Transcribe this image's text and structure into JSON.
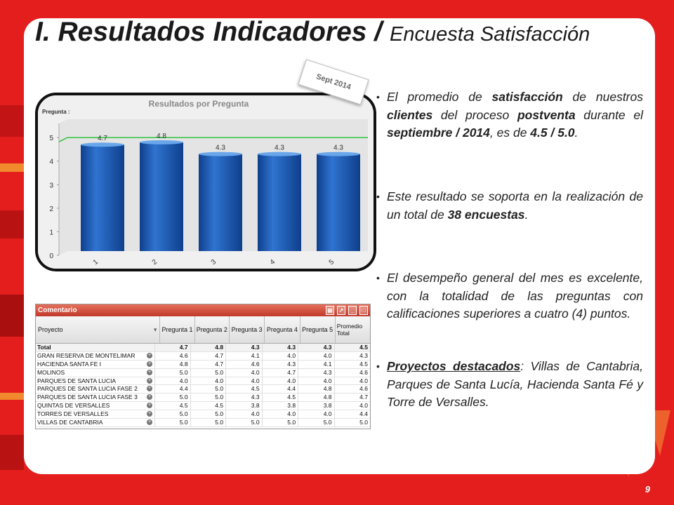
{
  "title": {
    "main": "I. Resultados Indicadores /",
    "sub": "Encuesta Satisfacción"
  },
  "tag": "Sept 2014",
  "page_number": "9",
  "chart_data": {
    "type": "bar",
    "title": "Resultados por Pregunta",
    "ylabel": "Pregunta :",
    "categories": [
      "1",
      "2",
      "3",
      "4",
      "5"
    ],
    "values": [
      4.7,
      4.8,
      4.3,
      4.3,
      4.3
    ],
    "data_labels": [
      "4.7",
      "4.8",
      "4.3",
      "4.3",
      "4.3"
    ],
    "ylim": [
      0,
      5.6
    ],
    "yticks": [
      "0",
      "1",
      "2",
      "3",
      "4",
      "5"
    ],
    "reference_line": 5,
    "colors": {
      "bar": "#2f74d0",
      "bar_dark": "#0f3f8c",
      "reference": "#3cc54b"
    }
  },
  "bullets": [
    {
      "parts": [
        {
          "t": "El promedio de "
        },
        {
          "t": "satisfacción",
          "b": true
        },
        {
          "t": " de nuestros "
        },
        {
          "t": "clientes",
          "b": true
        },
        {
          "t": " del proceso "
        },
        {
          "t": "postventa",
          "b": true
        },
        {
          "t": " durante el "
        },
        {
          "t": "septiembre / 2014",
          "b": true
        },
        {
          "t": ", es de "
        },
        {
          "t": "4.5 / 5.0",
          "b": true
        },
        {
          "t": "."
        }
      ]
    },
    {
      "parts": [
        {
          "t": "Este resultado se soporta en la realización de un total de "
        },
        {
          "t": "38 encuestas",
          "b": true
        },
        {
          "t": "."
        }
      ]
    },
    {
      "parts": [
        {
          "t": "El desempeño general del mes es excelente, con la totalidad de las preguntas con calificaciones superiores a cuatro (4) puntos."
        }
      ]
    },
    {
      "parts": [
        {
          "t": "Proyectos destacados",
          "u": true
        },
        {
          "t": ": Villas de Cantabria, Parques de Santa Lucía, Hacienda Santa Fé y Torre de Versalles."
        }
      ]
    }
  ],
  "table": {
    "caption": "Comentario",
    "headers": [
      "Proyecto",
      "Pregunta 1",
      "Pregunta 2",
      "Pregunta 3",
      "Pregunta 4",
      "Pregunta 5",
      "Promedio Total"
    ],
    "total": [
      "Total",
      "4.7",
      "4.8",
      "4.3",
      "4.3",
      "4.3",
      "4.5"
    ],
    "rows": [
      [
        "GRAN RESERVA DE MONTELIMAR",
        "4.6",
        "4.7",
        "4.1",
        "4.0",
        "4.0",
        "4.3"
      ],
      [
        "HACIENDA SANTA FE I",
        "4.8",
        "4.7",
        "4.6",
        "4.3",
        "4.1",
        "4.5"
      ],
      [
        "MOLINOS",
        "5.0",
        "5.0",
        "4.0",
        "4.7",
        "4.3",
        "4.6"
      ],
      [
        "PARQUES DE SANTA LUCIA",
        "4.0",
        "4.0",
        "4.0",
        "4.0",
        "4.0",
        "4.0"
      ],
      [
        "PARQUES DE SANTA LUCIA FASE 2",
        "4.4",
        "5.0",
        "4.5",
        "4.4",
        "4.8",
        "4.6"
      ],
      [
        "PARQUES DE SANTA LUCIA FASE 3",
        "5.0",
        "5.0",
        "4.3",
        "4.5",
        "4.8",
        "4.7"
      ],
      [
        "QUINTAS DE VERSALLES",
        "4.5",
        "4.5",
        "3.8",
        "3.8",
        "3.8",
        "4.0"
      ],
      [
        "TORRES DE VERSALLES",
        "5.0",
        "5.0",
        "4.0",
        "4.0",
        "4.0",
        "4.4"
      ],
      [
        "VILLAS DE CANTABRIA",
        "5.0",
        "5.0",
        "5.0",
        "5.0",
        "5.0",
        "5.0"
      ]
    ]
  }
}
